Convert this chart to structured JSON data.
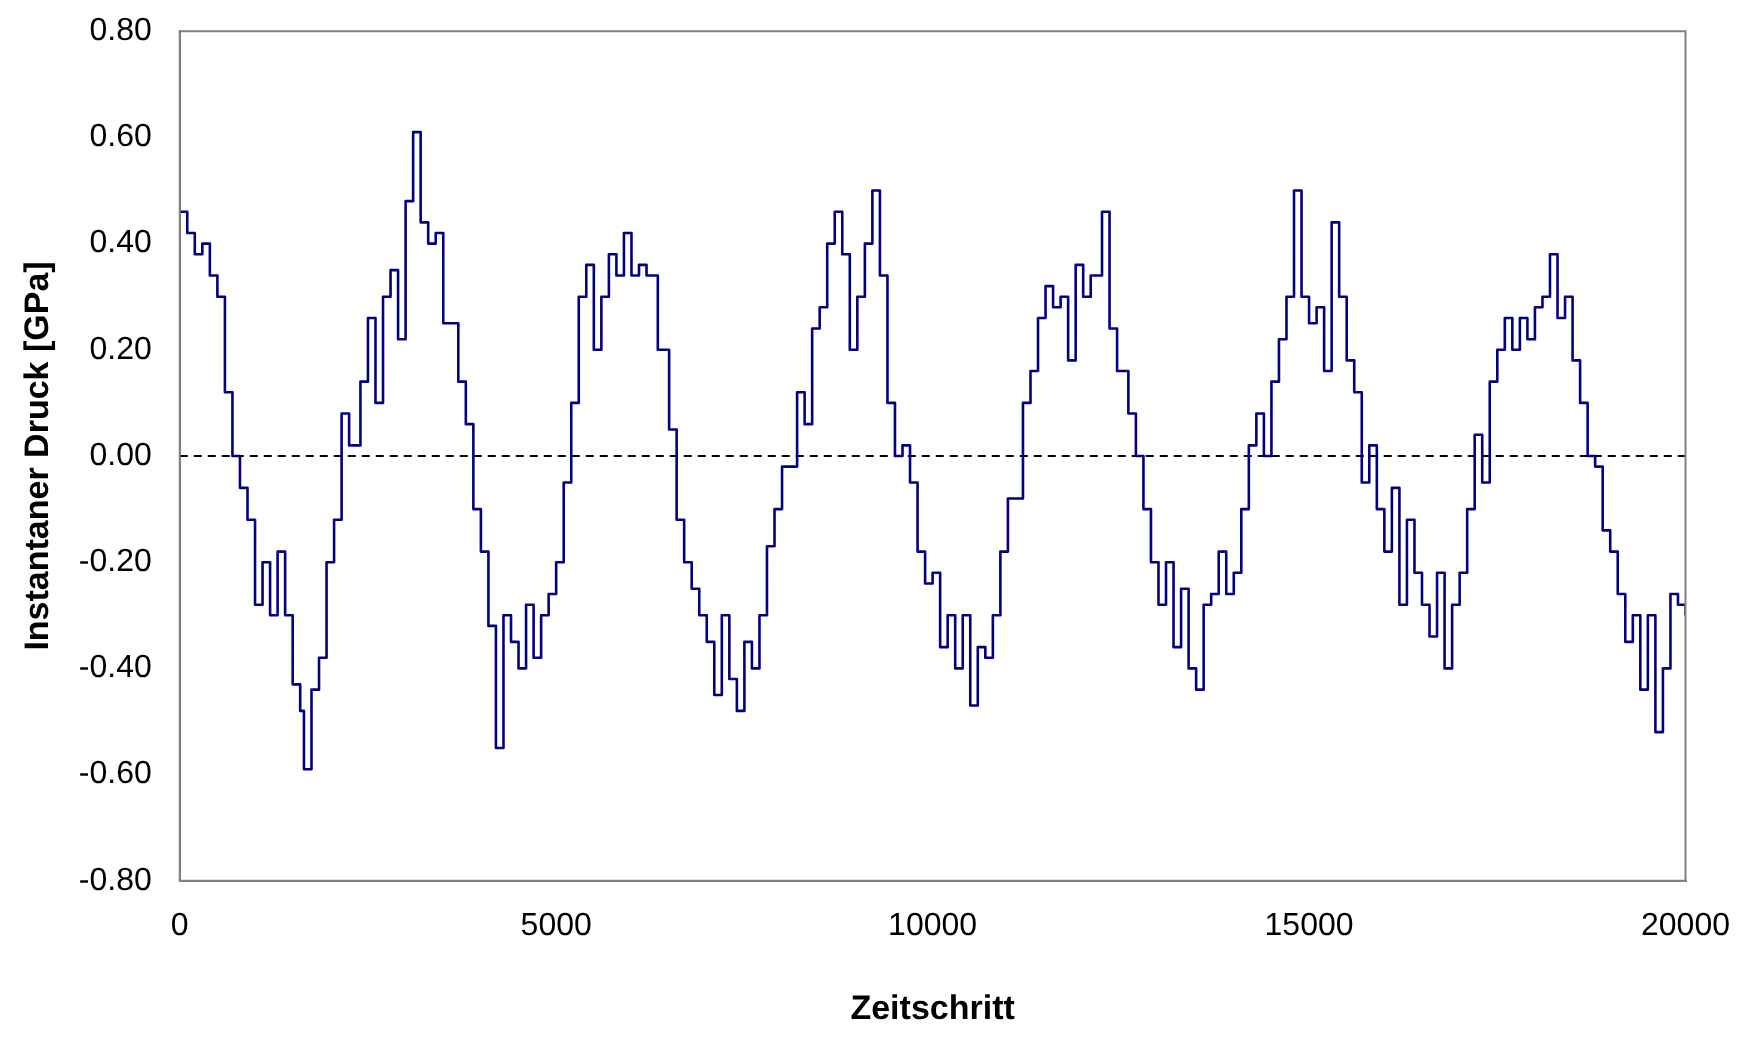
{
  "chart_data": {
    "type": "step",
    "xlabel": "Zeitschritt",
    "ylabel": "Instantaner Druck [GPa]",
    "xlim": [
      0,
      20000
    ],
    "xticks": [
      0,
      5000,
      10000,
      15000,
      20000
    ],
    "ylim": [
      -0.8,
      0.8
    ],
    "yticks": [
      {
        "value": -0.8,
        "label": "-0.80"
      },
      {
        "value": -0.6,
        "label": "-0.60"
      },
      {
        "value": -0.4,
        "label": "-0.40"
      },
      {
        "value": -0.2,
        "label": "-0.20"
      },
      {
        "value": 0,
        "label": "0.00"
      },
      {
        "value": 0.2,
        "label": "0.20"
      },
      {
        "value": 0.4,
        "label": "0.40"
      },
      {
        "value": 0.6,
        "label": "0.60"
      },
      {
        "value": 0.8,
        "label": "0.80"
      }
    ],
    "grid": false,
    "legend": false,
    "marker": "none",
    "line_style": "solid",
    "ref_lines": [
      {
        "axis": "y",
        "value": 0,
        "color": "#000000",
        "line_style": "dashed"
      }
    ],
    "series": [
      {
        "color": "#000080",
        "x": [
          0,
          100,
          200,
          300,
          400,
          500,
          600,
          700,
          800,
          900,
          1000,
          1100,
          1200,
          1300,
          1400,
          1500,
          1600,
          1650,
          1750,
          1850,
          1950,
          2050,
          2150,
          2250,
          2400,
          2500,
          2600,
          2700,
          2800,
          2900,
          3000,
          3100,
          3200,
          3300,
          3400,
          3500,
          3700,
          3800,
          3900,
          4000,
          4100,
          4200,
          4300,
          4400,
          4500,
          4600,
          4700,
          4800,
          4900,
          5000,
          5100,
          5200,
          5300,
          5400,
          5500,
          5600,
          5700,
          5800,
          5900,
          6000,
          6100,
          6200,
          6350,
          6500,
          6600,
          6700,
          6800,
          6900,
          7000,
          7100,
          7200,
          7300,
          7400,
          7500,
          7600,
          7700,
          7800,
          7900,
          8000,
          8200,
          8300,
          8400,
          8500,
          8600,
          8700,
          8800,
          8900,
          9000,
          9100,
          9200,
          9300,
          9400,
          9500,
          9600,
          9700,
          9800,
          9900,
          10000,
          10100,
          10200,
          10300,
          10400,
          10500,
          10600,
          10700,
          10800,
          10900,
          11000,
          11200,
          11300,
          11400,
          11500,
          11600,
          11700,
          11800,
          11900,
          12000,
          12100,
          12250,
          12350,
          12450,
          12600,
          12700,
          12800,
          12900,
          13000,
          13100,
          13200,
          13300,
          13400,
          13500,
          13600,
          13700,
          13800,
          13900,
          14000,
          14100,
          14200,
          14300,
          14400,
          14500,
          14600,
          14700,
          14800,
          14900,
          15000,
          15100,
          15200,
          15300,
          15400,
          15500,
          15600,
          15700,
          15800,
          15900,
          16000,
          16100,
          16200,
          16300,
          16400,
          16500,
          16600,
          16700,
          16800,
          16900,
          17000,
          17100,
          17200,
          17300,
          17400,
          17500,
          17600,
          17700,
          17800,
          17900,
          18000,
          18100,
          18200,
          18300,
          18400,
          18500,
          18600,
          18700,
          18800,
          18900,
          19000,
          19100,
          19200,
          19300,
          19400,
          19500,
          19600,
          19700,
          19800,
          19900,
          20000
        ],
        "values": [
          0.46,
          0.42,
          0.38,
          0.4,
          0.34,
          0.3,
          0.12,
          0.0,
          -0.06,
          -0.12,
          -0.28,
          -0.2,
          -0.3,
          -0.18,
          -0.3,
          -0.43,
          -0.48,
          -0.59,
          -0.44,
          -0.38,
          -0.2,
          -0.12,
          0.08,
          0.02,
          0.14,
          0.26,
          0.1,
          0.3,
          0.35,
          0.22,
          0.48,
          0.61,
          0.44,
          0.4,
          0.42,
          0.25,
          0.14,
          0.06,
          -0.1,
          -0.18,
          -0.32,
          -0.55,
          -0.3,
          -0.35,
          -0.4,
          -0.28,
          -0.38,
          -0.3,
          -0.26,
          -0.2,
          -0.05,
          0.1,
          0.3,
          0.36,
          0.2,
          0.3,
          0.38,
          0.34,
          0.42,
          0.34,
          0.36,
          0.34,
          0.2,
          0.05,
          -0.12,
          -0.2,
          -0.25,
          -0.3,
          -0.35,
          -0.45,
          -0.3,
          -0.42,
          -0.48,
          -0.35,
          -0.4,
          -0.3,
          -0.17,
          -0.1,
          -0.02,
          0.12,
          0.06,
          0.24,
          0.28,
          0.4,
          0.46,
          0.38,
          0.2,
          0.3,
          0.4,
          0.5,
          0.34,
          0.1,
          0.0,
          0.02,
          -0.05,
          -0.18,
          -0.24,
          -0.22,
          -0.36,
          -0.3,
          -0.4,
          -0.3,
          -0.47,
          -0.36,
          -0.38,
          -0.3,
          -0.18,
          -0.08,
          0.1,
          0.16,
          0.26,
          0.32,
          0.28,
          0.3,
          0.18,
          0.36,
          0.3,
          0.34,
          0.46,
          0.24,
          0.16,
          0.08,
          0.0,
          -0.1,
          -0.2,
          -0.28,
          -0.2,
          -0.36,
          -0.25,
          -0.4,
          -0.44,
          -0.28,
          -0.26,
          -0.18,
          -0.26,
          -0.22,
          -0.1,
          0.02,
          0.08,
          0.0,
          0.14,
          0.22,
          0.3,
          0.5,
          0.3,
          0.25,
          0.28,
          0.16,
          0.44,
          0.3,
          0.18,
          0.12,
          -0.05,
          0.02,
          -0.1,
          -0.18,
          -0.06,
          -0.28,
          -0.12,
          -0.22,
          -0.28,
          -0.34,
          -0.22,
          -0.4,
          -0.28,
          -0.22,
          -0.1,
          0.04,
          -0.05,
          0.14,
          0.2,
          0.26,
          0.2,
          0.26,
          0.22,
          0.28,
          0.3,
          0.38,
          0.26,
          0.3,
          0.18,
          0.1,
          0.0,
          -0.02,
          -0.14,
          -0.18,
          -0.26,
          -0.35,
          -0.3,
          -0.44,
          -0.3,
          -0.52,
          -0.4,
          -0.26,
          -0.28,
          -0.3
        ]
      }
    ]
  }
}
